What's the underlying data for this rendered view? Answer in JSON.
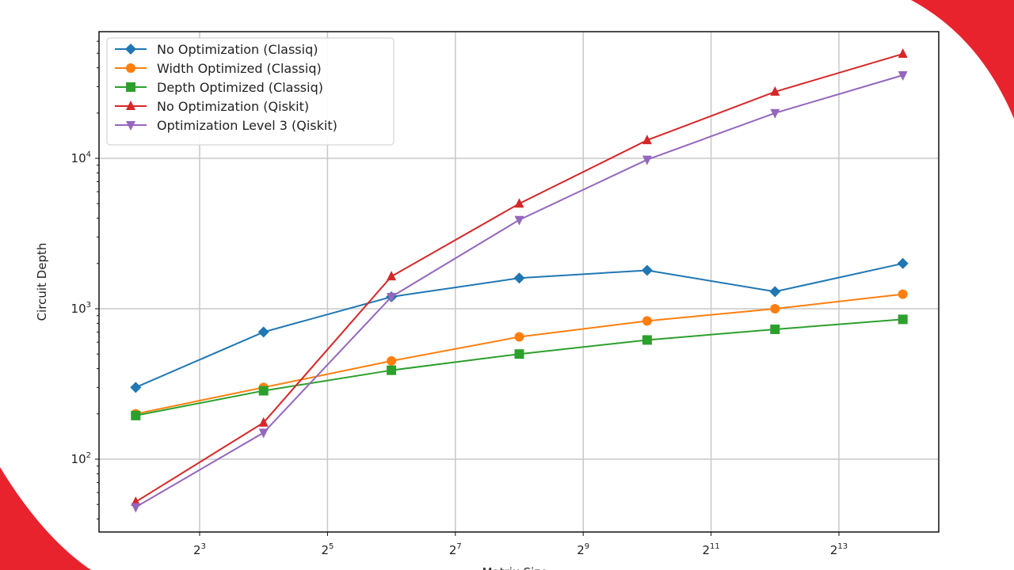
{
  "chart_data": {
    "type": "line",
    "title": "",
    "xlabel": "Matrix Size",
    "ylabel": "Circuit Depth",
    "xscale": "log2",
    "yscale": "log10",
    "x": [
      4,
      16,
      64,
      256,
      1024,
      4096,
      16384
    ],
    "xticks": [
      8,
      32,
      128,
      512,
      2048,
      8192
    ],
    "xtick_labels": [
      {
        "base": "2",
        "exp": "3"
      },
      {
        "base": "2",
        "exp": "5"
      },
      {
        "base": "2",
        "exp": "7"
      },
      {
        "base": "2",
        "exp": "9"
      },
      {
        "base": "2",
        "exp": "11"
      },
      {
        "base": "2",
        "exp": "13"
      }
    ],
    "yticks": [
      100,
      1000,
      10000
    ],
    "ytick_labels": [
      {
        "base": "10",
        "exp": "2"
      },
      {
        "base": "10",
        "exp": "3"
      },
      {
        "base": "10",
        "exp": "4"
      }
    ],
    "xlim": [
      2.9,
      29000
    ],
    "ylim": [
      33,
      69000
    ],
    "grid": true,
    "legend_position": "top-left",
    "series": [
      {
        "name": "No Optimization (Classiq)",
        "color": "#1f77b4",
        "marker": "diamond",
        "values": [
          300,
          700,
          1200,
          1600,
          1800,
          1300,
          2000
        ]
      },
      {
        "name": "Width Optimized (Classiq)",
        "color": "#ff7f0e",
        "marker": "circle",
        "values": [
          200,
          300,
          450,
          650,
          830,
          1000,
          1250
        ]
      },
      {
        "name": "Depth Optimized (Classiq)",
        "color": "#2ca02c",
        "marker": "square",
        "values": [
          195,
          285,
          390,
          500,
          620,
          730,
          850
        ]
      },
      {
        "name": "No Optimization (Qiskit)",
        "color": "#d62728",
        "marker": "triangle-up",
        "values": [
          52,
          175,
          1640,
          5000,
          13200,
          27700,
          49500
        ]
      },
      {
        "name": "Optimization Level 3 (Qiskit)",
        "color": "#9467bd",
        "marker": "triangle-down",
        "values": [
          48,
          150,
          1200,
          3900,
          9800,
          20000,
          35700
        ]
      }
    ]
  },
  "decor": {
    "accent": "#e8232e"
  }
}
